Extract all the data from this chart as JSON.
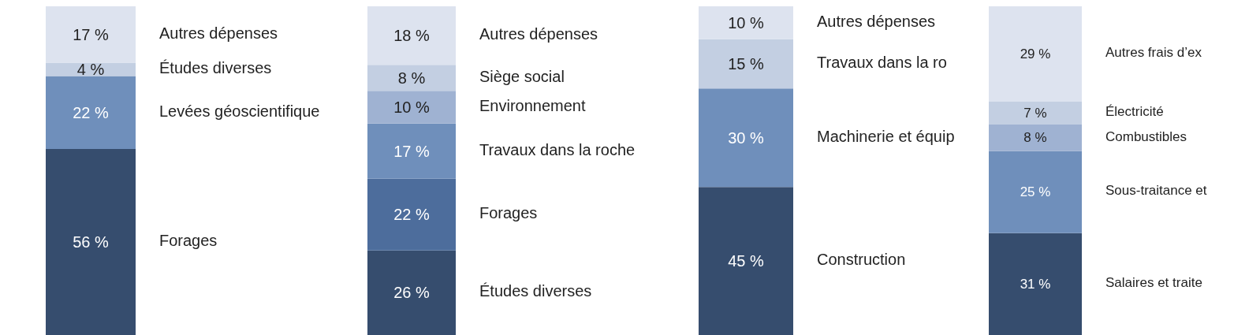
{
  "chart_data": [
    {
      "type": "bar",
      "stacked": true,
      "categories": [
        null
      ],
      "series": [
        {
          "name": "Forages",
          "color": "#364d6e",
          "values": [
            56
          ],
          "value_labels": [
            "56 %"
          ]
        },
        {
          "name": "Levées géoscientifique",
          "color": "#6f8fbb",
          "values": [
            22
          ],
          "value_labels": [
            "22 %"
          ]
        },
        {
          "name": "Études diverses",
          "color": "#c3cfe2",
          "values": [
            4
          ],
          "value_labels": [
            "4 %"
          ]
        },
        {
          "name": "Autres dépenses",
          "color": "#dde3ef",
          "values": [
            17
          ],
          "value_labels": [
            "17 %"
          ]
        }
      ]
    },
    {
      "type": "bar",
      "stacked": true,
      "categories": [
        null
      ],
      "series": [
        {
          "name": "Études diverses",
          "color": "#364d6e",
          "values": [
            26
          ],
          "value_labels": [
            "26 %"
          ]
        },
        {
          "name": "Forages",
          "color": "#4d6d9c",
          "values": [
            22
          ],
          "value_labels": [
            "22 %"
          ]
        },
        {
          "name": "Travaux dans la roche",
          "color": "#6f8fbb",
          "values": [
            17
          ],
          "value_labels": [
            "17 %"
          ]
        },
        {
          "name": "Environnement",
          "color": "#9fb2d2",
          "values": [
            10
          ],
          "value_labels": [
            "10 %"
          ]
        },
        {
          "name": "Siège social",
          "color": "#c3cfe2",
          "values": [
            8
          ],
          "value_labels": [
            "8 %"
          ]
        },
        {
          "name": "Autres dépenses",
          "color": "#dde3ef",
          "values": [
            18
          ],
          "value_labels": [
            "18 %"
          ]
        }
      ]
    },
    {
      "type": "bar",
      "stacked": true,
      "categories": [
        null
      ],
      "series": [
        {
          "name": "Construction",
          "color": "#364d6e",
          "values": [
            45
          ],
          "value_labels": [
            "45 %"
          ]
        },
        {
          "name": "Machinerie et équip",
          "color": "#6f8fbb",
          "values": [
            30
          ],
          "value_labels": [
            "30 %"
          ]
        },
        {
          "name": "Travaux dans la ro",
          "color": "#c3cfe2",
          "values": [
            15
          ],
          "value_labels": [
            "15 %"
          ]
        },
        {
          "name": "Autres dépenses",
          "color": "#dde3ef",
          "values": [
            10
          ],
          "value_labels": [
            "10 %"
          ]
        }
      ]
    },
    {
      "type": "bar",
      "stacked": true,
      "categories": [
        null
      ],
      "series": [
        {
          "name": "Salaires et traite",
          "color": "#364d6e",
          "values": [
            31
          ],
          "value_labels": [
            "31 %"
          ]
        },
        {
          "name": "Sous-traitance et",
          "color": "#6f8fbb",
          "values": [
            25
          ],
          "value_labels": [
            "25 %"
          ]
        },
        {
          "name": "Combustibles",
          "color": "#9fb2d2",
          "values": [
            8
          ],
          "value_labels": [
            "8 %"
          ]
        },
        {
          "name": "Électricité",
          "color": "#c3cfe2",
          "values": [
            7
          ],
          "value_labels": [
            "7 %"
          ]
        },
        {
          "name": "Autres frais d’ex",
          "color": "#dde3ef",
          "values": [
            29
          ],
          "value_labels": [
            "29 %"
          ]
        }
      ]
    }
  ]
}
